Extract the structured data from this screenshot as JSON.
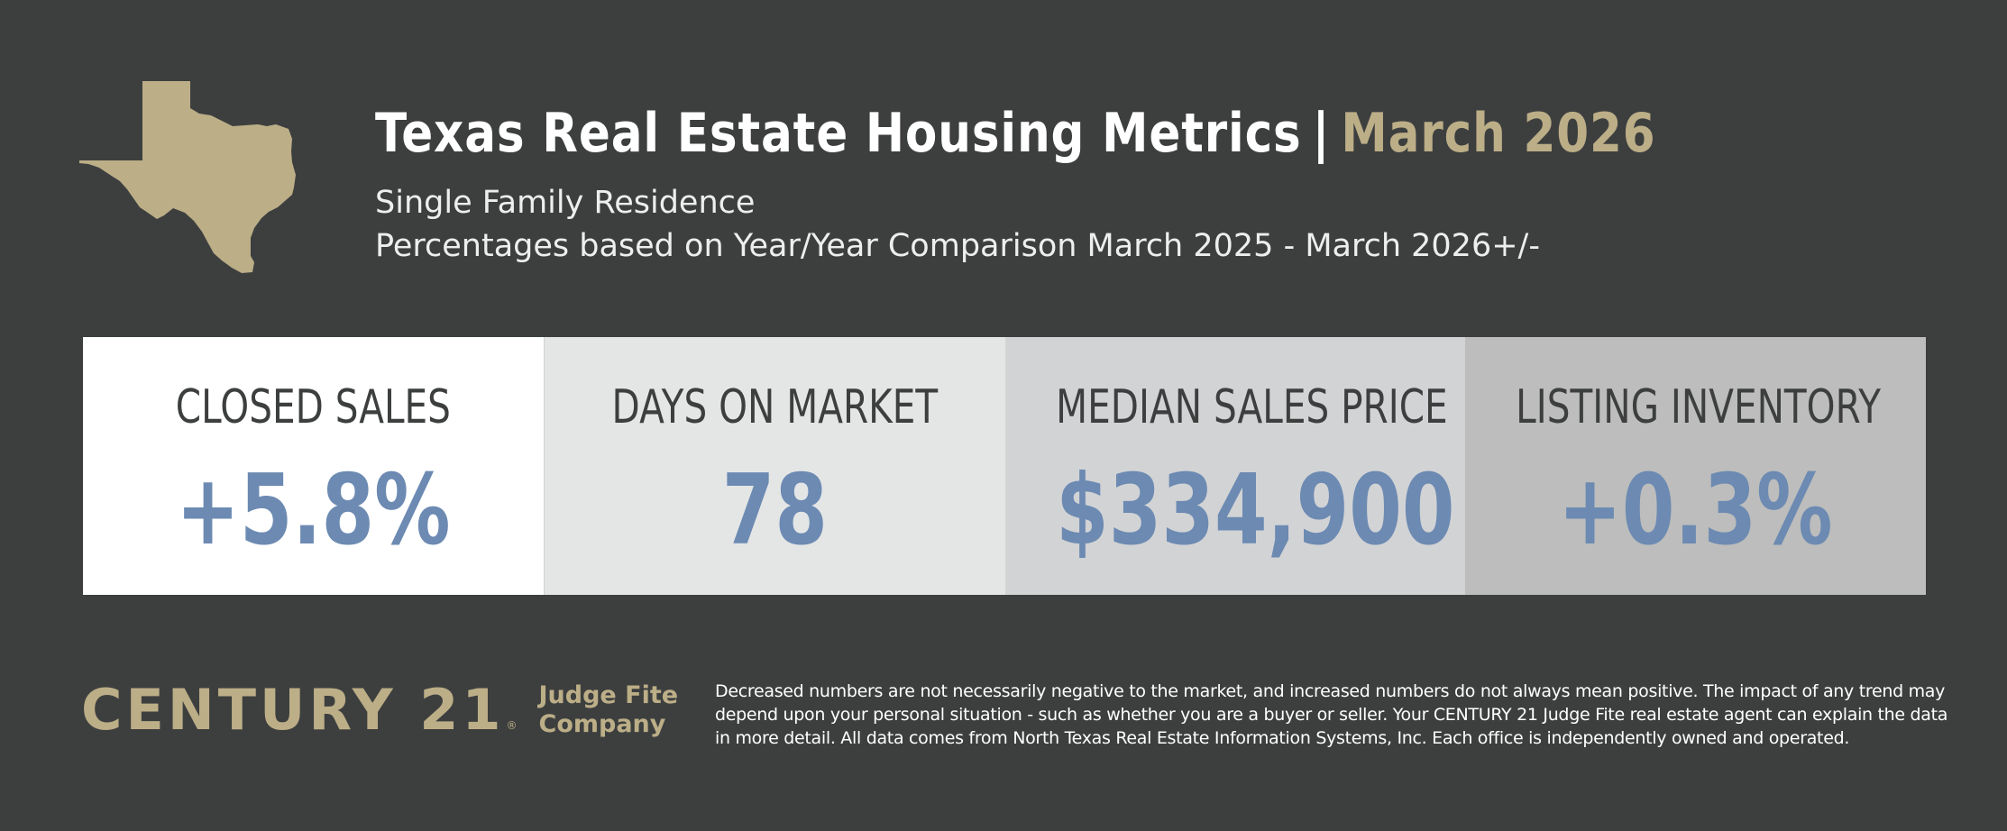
{
  "header": {
    "title": "Texas Real Estate Housing Metrics",
    "separator": "|",
    "date": "March 2026",
    "subtitle_1": "Single Family Residence",
    "subtitle_2": "Percentages based on Year/Year Comparison March 2025 - March 2026+/-"
  },
  "logo": {
    "icon": "texas-state-icon",
    "color": "#bcae87"
  },
  "metrics": [
    {
      "label": "CLOSED SALES",
      "value": "+5.8%"
    },
    {
      "label": "DAYS ON MARKET",
      "value": "78"
    },
    {
      "label": "MEDIAN SALES PRICE",
      "value": "$334,900"
    },
    {
      "label": "LISTING INVENTORY",
      "value": "+0.3%"
    }
  ],
  "brand": {
    "name": "CENTURY 21",
    "registered": "®",
    "office_line_1": "Judge Fite",
    "office_line_2": "Company"
  },
  "disclaimer": "Decreased numbers are not necessarily negative to the market, and increased numbers do not always mean positive. The impact of any trend may depend upon your personal situation - such as whether you are a buyer or seller. Your CENTURY 21 Judge Fite real estate agent can explain the data in more detail. All data comes from North Texas Real Estate Information Systems, Inc. Each office is independently owned and operated.",
  "colors": {
    "background": "#3d3f3f",
    "accent_gold": "#bcae87",
    "value_blue": "#6c8ab2"
  }
}
